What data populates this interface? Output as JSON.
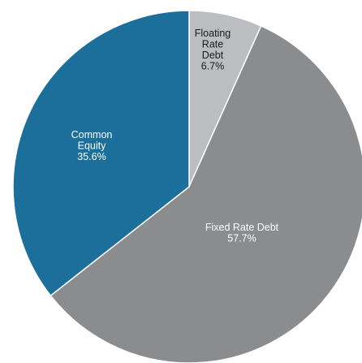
{
  "chart_data": {
    "type": "pie",
    "title": "",
    "start_angle_deg": 0,
    "direction": "clockwise",
    "slices": [
      {
        "label_lines": [
          "Floating",
          "Rate",
          "Debt"
        ],
        "percent_label": "6.7%",
        "value": 6.7,
        "color": "#bcbdc1",
        "text_color": "#1a1a1a"
      },
      {
        "label_lines": [
          "Fixed Rate Debt"
        ],
        "percent_label": "57.7%",
        "value": 57.7,
        "color": "#8b8c8e",
        "text_color": "#ffffff"
      },
      {
        "label_lines": [
          "Common",
          "Equity"
        ],
        "percent_label": "35.6%",
        "value": 35.6,
        "color": "#1b6f9a",
        "text_color": "#ffffff"
      }
    ]
  }
}
